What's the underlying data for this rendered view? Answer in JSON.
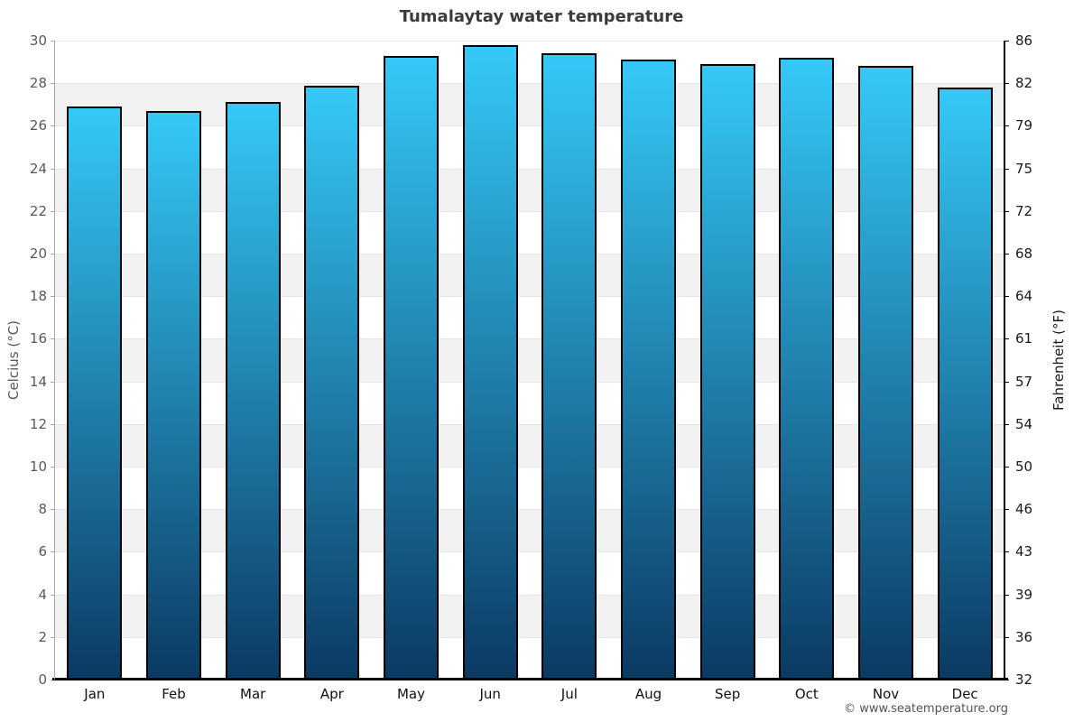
{
  "title": "Tumalaytay water temperature",
  "footer": "© www.seatemperature.org",
  "axis_titles": {
    "left": "Celcius (°C)",
    "right": "Fahrenheit (°F)"
  },
  "chart_data": {
    "type": "bar",
    "title": "Tumalaytay water temperature",
    "xlabel": "",
    "ylabel": "Celcius (°C)",
    "ylabel_right": "Fahrenheit (°F)",
    "unit": "°C",
    "categories": [
      "Jan",
      "Feb",
      "Mar",
      "Apr",
      "May",
      "Jun",
      "Jul",
      "Aug",
      "Sep",
      "Oct",
      "Nov",
      "Dec"
    ],
    "values": [
      26.9,
      26.7,
      27.1,
      27.9,
      29.3,
      29.8,
      29.4,
      29.1,
      28.9,
      29.2,
      28.8,
      27.8
    ],
    "ylim": [
      0,
      30
    ],
    "y_ticks_left": [
      30,
      28,
      26,
      24,
      22,
      20,
      18,
      16,
      14,
      12,
      10,
      8,
      6,
      4,
      2,
      0
    ],
    "y_ticks_right": [
      86,
      82,
      79,
      75,
      72,
      68,
      64,
      61,
      57,
      54,
      50,
      46,
      43,
      39,
      36,
      32
    ],
    "legend": "none",
    "grid": "horizontal alternating bands every 2°C",
    "colors": {
      "bar_gradient_top": "#35c9f7",
      "bar_gradient_bottom": "#0b3a63",
      "bar_border": "#000000",
      "band_shade": "#f2f2f2",
      "gridline": "#e6e6e6",
      "axis_left_line": "#a6a6a6",
      "axis_right_line": "#000000",
      "baseline": "#000000",
      "title_text": "#3c3c3c",
      "left_axis_text": "#595959",
      "right_axis_text": "#1a1a1a",
      "month_text": "#111111",
      "footer_text": "#555555"
    }
  }
}
